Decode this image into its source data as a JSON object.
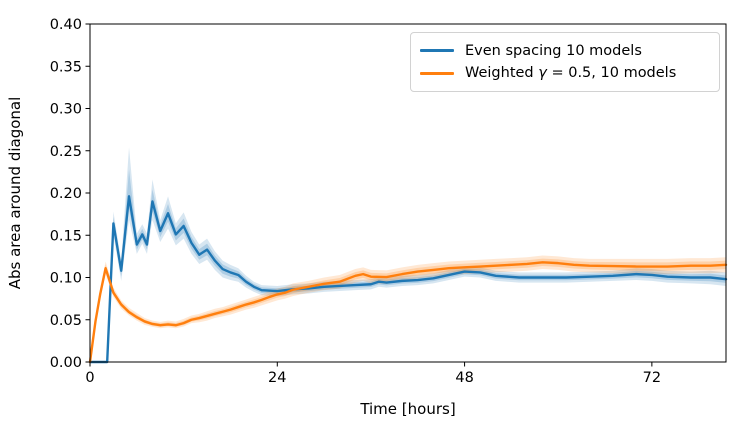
{
  "chart_data": {
    "type": "line",
    "title": "",
    "xlabel": "Time [hours]",
    "ylabel": "Abs area around diagonal",
    "xlim": [
      0,
      81.5
    ],
    "ylim": [
      0,
      0.4
    ],
    "grid": false,
    "legend_position": "upper right",
    "background_color": "#ffffff",
    "x_ticks": {
      "values": [
        0,
        24,
        48,
        72
      ],
      "labels": [
        "0",
        "24",
        "48",
        "72"
      ]
    },
    "y_ticks": {
      "values": [
        0.0,
        0.05,
        0.1,
        0.15,
        0.2,
        0.25,
        0.3,
        0.35,
        0.4
      ],
      "labels": [
        "0.00",
        "0.05",
        "0.10",
        "0.15",
        "0.20",
        "0.25",
        "0.30",
        "0.35",
        "0.40"
      ]
    },
    "series": [
      {
        "name": "even-spacing",
        "color": "#1f77b4",
        "x": [
          0,
          1,
          2.2,
          3,
          4,
          5,
          6,
          6.7,
          7.3,
          8,
          9,
          10,
          11,
          12,
          13,
          14,
          15,
          16,
          17,
          18,
          19,
          20,
          21,
          22,
          24,
          26,
          28,
          30,
          32,
          34,
          36,
          37,
          38,
          40,
          42,
          44,
          46,
          48,
          50,
          52,
          55,
          58,
          61,
          64,
          67,
          70,
          72,
          74,
          77,
          79.5,
          81.5
        ],
        "y": [
          0,
          0,
          0,
          0.164,
          0.108,
          0.196,
          0.139,
          0.151,
          0.139,
          0.19,
          0.155,
          0.176,
          0.151,
          0.161,
          0.141,
          0.127,
          0.133,
          0.12,
          0.11,
          0.106,
          0.103,
          0.095,
          0.089,
          0.085,
          0.084,
          0.086,
          0.087,
          0.089,
          0.09,
          0.091,
          0.092,
          0.095,
          0.094,
          0.096,
          0.097,
          0.099,
          0.103,
          0.107,
          0.106,
          0.102,
          0.1,
          0.1,
          0.1,
          0.101,
          0.102,
          0.104,
          0.103,
          0.101,
          0.1,
          0.1,
          0.098
        ],
        "lo": [
          0,
          0,
          0,
          0.15,
          0.096,
          0.168,
          0.128,
          0.14,
          0.128,
          0.168,
          0.142,
          0.158,
          0.138,
          0.146,
          0.128,
          0.116,
          0.121,
          0.109,
          0.1,
          0.097,
          0.095,
          0.088,
          0.083,
          0.079,
          0.078,
          0.08,
          0.081,
          0.083,
          0.084,
          0.085,
          0.086,
          0.089,
          0.088,
          0.09,
          0.091,
          0.093,
          0.097,
          0.101,
          0.1,
          0.096,
          0.094,
          0.094,
          0.094,
          0.095,
          0.096,
          0.097,
          0.096,
          0.094,
          0.093,
          0.092,
          0.09
        ],
        "hi": [
          0,
          0,
          0,
          0.178,
          0.12,
          0.254,
          0.152,
          0.163,
          0.152,
          0.216,
          0.168,
          0.196,
          0.164,
          0.177,
          0.154,
          0.139,
          0.146,
          0.131,
          0.12,
          0.115,
          0.111,
          0.102,
          0.095,
          0.091,
          0.09,
          0.092,
          0.093,
          0.095,
          0.096,
          0.097,
          0.098,
          0.101,
          0.1,
          0.102,
          0.103,
          0.105,
          0.109,
          0.113,
          0.112,
          0.108,
          0.106,
          0.106,
          0.106,
          0.107,
          0.108,
          0.111,
          0.11,
          0.108,
          0.107,
          0.108,
          0.106
        ]
      },
      {
        "name": "weighted-gamma",
        "color": "#ff7f0e",
        "x": [
          0,
          0.7,
          1.3,
          2,
          3,
          4,
          5,
          6,
          7,
          8,
          9,
          10,
          11,
          12,
          13,
          14,
          15,
          16,
          17,
          18,
          19,
          20,
          21,
          22,
          23,
          24,
          25,
          26,
          28,
          30,
          32,
          34,
          35,
          36,
          38,
          40,
          42,
          44,
          46,
          48,
          50,
          52,
          54,
          56,
          58,
          60,
          62,
          64,
          67,
          70,
          72,
          74,
          77,
          79.5,
          81.5
        ],
        "y": [
          0,
          0.048,
          0.08,
          0.111,
          0.082,
          0.068,
          0.059,
          0.053,
          0.048,
          0.045,
          0.0435,
          0.0445,
          0.0435,
          0.046,
          0.05,
          0.052,
          0.0545,
          0.057,
          0.0595,
          0.062,
          0.065,
          0.068,
          0.0705,
          0.0735,
          0.077,
          0.08,
          0.082,
          0.0855,
          0.089,
          0.0925,
          0.095,
          0.102,
          0.104,
          0.101,
          0.1005,
          0.104,
          0.107,
          0.109,
          0.111,
          0.112,
          0.113,
          0.114,
          0.115,
          0.116,
          0.118,
          0.117,
          0.115,
          0.114,
          0.1135,
          0.113,
          0.113,
          0.113,
          0.114,
          0.114,
          0.115
        ],
        "lo": [
          0,
          0.044,
          0.074,
          0.104,
          0.077,
          0.063,
          0.055,
          0.049,
          0.044,
          0.0415,
          0.04,
          0.041,
          0.04,
          0.042,
          0.046,
          0.047,
          0.049,
          0.052,
          0.054,
          0.056,
          0.059,
          0.062,
          0.064,
          0.067,
          0.07,
          0.073,
          0.075,
          0.078,
          0.082,
          0.085,
          0.087,
          0.094,
          0.096,
          0.093,
          0.0925,
          0.096,
          0.099,
          0.101,
          0.103,
          0.104,
          0.105,
          0.106,
          0.107,
          0.108,
          0.11,
          0.109,
          0.107,
          0.106,
          0.105,
          0.104,
          0.104,
          0.104,
          0.105,
          0.105,
          0.106
        ],
        "hi": [
          0,
          0.053,
          0.087,
          0.119,
          0.088,
          0.073,
          0.064,
          0.058,
          0.052,
          0.049,
          0.0475,
          0.049,
          0.048,
          0.051,
          0.055,
          0.057,
          0.06,
          0.063,
          0.065,
          0.068,
          0.071,
          0.074,
          0.077,
          0.08,
          0.084,
          0.087,
          0.089,
          0.093,
          0.096,
          0.1,
          0.103,
          0.11,
          0.112,
          0.109,
          0.1085,
          0.112,
          0.115,
          0.117,
          0.119,
          0.12,
          0.121,
          0.122,
          0.123,
          0.124,
          0.126,
          0.125,
          0.123,
          0.122,
          0.122,
          0.122,
          0.122,
          0.122,
          0.123,
          0.123,
          0.124
        ]
      }
    ],
    "legend": [
      {
        "series": "even-spacing",
        "color": "#1f77b4",
        "parts": [
          {
            "text": "Even spacing 10 models",
            "italic": false
          }
        ]
      },
      {
        "series": "weighted-gamma",
        "color": "#ff7f0e",
        "parts": [
          {
            "text": "Weighted ",
            "italic": false
          },
          {
            "text": "γ",
            "italic": true
          },
          {
            "text": " = 0.5, 10 models",
            "italic": false
          }
        ]
      }
    ]
  }
}
